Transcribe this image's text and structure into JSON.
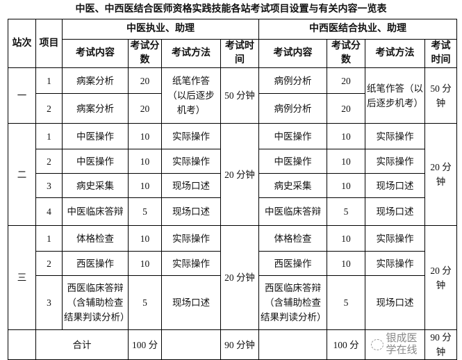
{
  "title": "中医、中西医结合医师资格实践技能各站考试项目设置与有关内容一览表",
  "headers": {
    "station": "站次",
    "item": "项目",
    "group_tcm": "中医执业、助理",
    "group_int": "中西医结合执业、助理",
    "content": "考试内容",
    "score": "考试分数",
    "method": "考试方法",
    "time": "考试时间"
  },
  "stations": [
    {
      "name": "一",
      "tcm_time": "50 分钟",
      "int_time": "50 分钟",
      "tcm_method": "纸笔作答（以后逐步机考）",
      "int_method": "纸笔作答（以后逐步机考）",
      "rows": [
        {
          "no": "1",
          "tcm_content": "病案分析",
          "tcm_score": "20",
          "int_content": "病例分析",
          "int_score": "20"
        },
        {
          "no": "2",
          "tcm_content": "病案分析",
          "tcm_score": "20",
          "int_content": "病例分析",
          "int_score": "20"
        }
      ]
    },
    {
      "name": "二",
      "tcm_time": "20 分钟",
      "int_time": "20 分钟",
      "rows": [
        {
          "no": "1",
          "tcm_content": "中医操作",
          "tcm_score": "10",
          "tcm_method": "实际操作",
          "int_content": "中医操作",
          "int_score": "10",
          "int_method": "实际操作"
        },
        {
          "no": "2",
          "tcm_content": "中医操作",
          "tcm_score": "10",
          "tcm_method": "实际操作",
          "int_content": "中医操作",
          "int_score": "10",
          "int_method": "实际操作"
        },
        {
          "no": "3",
          "tcm_content": "病史采集",
          "tcm_score": "10",
          "tcm_method": "现场口述",
          "int_content": "病史采集",
          "int_score": "10",
          "int_method": "现场口述"
        },
        {
          "no": "4",
          "tcm_content": "中医临床答辩",
          "tcm_score": "5",
          "tcm_method": "现场口述",
          "int_content": "中医临床答辩",
          "int_score": "5",
          "int_method": "现场口述"
        }
      ]
    },
    {
      "name": "三",
      "tcm_time": "20 分钟",
      "int_time": "20 分钟",
      "rows": [
        {
          "no": "1",
          "tcm_content": "体格检查",
          "tcm_score": "10",
          "tcm_method": "实际操作",
          "int_content": "体格检查",
          "int_score": "10",
          "int_method": "实际操作"
        },
        {
          "no": "2",
          "tcm_content": "西医操作",
          "tcm_score": "10",
          "tcm_method": "实际操作",
          "int_content": "西医操作",
          "int_score": "10",
          "int_method": "实际操作"
        },
        {
          "no": "3",
          "tcm_content": "西医临床答辩（含辅助检查结果判读分析）",
          "tcm_score": "5",
          "tcm_method": "现场口述",
          "int_content": "西医临床答辩（含辅助检查结果判读分析）",
          "int_score": "5",
          "int_method": "现场口述"
        }
      ]
    }
  ],
  "total": {
    "label": "合计",
    "tcm_score": "100 分",
    "tcm_time": "90 分钟",
    "int_score": "100 分",
    "int_time": "90 分钟"
  },
  "watermark": "银成医学在线"
}
